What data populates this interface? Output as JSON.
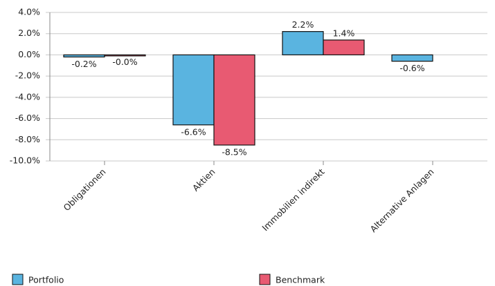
{
  "chart_data": {
    "type": "bar",
    "categories": [
      "Obligationen",
      "Aktien",
      "Immobilien indirekt",
      "Alternative Anlagen"
    ],
    "series": [
      {
        "name": "Portfolio",
        "color": "#5ab4e0",
        "values": [
          -0.2,
          -6.6,
          2.2,
          -0.6
        ],
        "value_labels": [
          "-0.2%",
          "-6.6%",
          "2.2%",
          "-0.6%"
        ]
      },
      {
        "name": "Benchmark",
        "color": "#e85a72",
        "values": [
          -0.02,
          -8.5,
          1.4,
          null
        ],
        "value_labels": [
          "-0.0%",
          "-8.5%",
          "1.4%",
          null
        ]
      }
    ],
    "ylim": [
      -10,
      4
    ],
    "yticks": [
      {
        "value": -10,
        "label": "-10.0%"
      },
      {
        "value": -8,
        "label": "-8.0%"
      },
      {
        "value": -6,
        "label": "-6.0%"
      },
      {
        "value": -4,
        "label": "-4.0%"
      },
      {
        "value": -2,
        "label": "-2.0%"
      },
      {
        "value": 0,
        "label": "0.0%"
      },
      {
        "value": 2,
        "label": "2.0%"
      },
      {
        "value": 4,
        "label": "4.0%"
      }
    ],
    "grid": true
  }
}
